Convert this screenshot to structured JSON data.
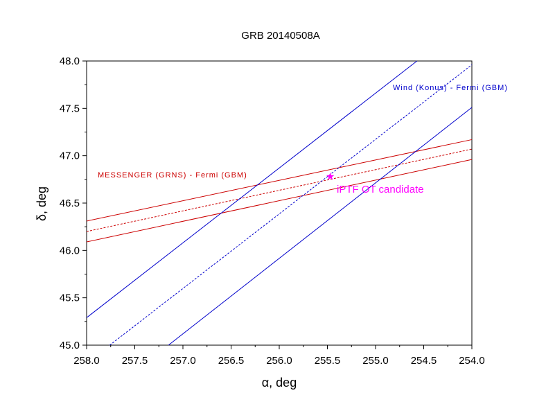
{
  "chart_data": {
    "type": "line",
    "title": "GRB 20140508A",
    "xlabel": "α, deg",
    "ylabel": "δ, deg",
    "xlim": [
      258.0,
      254.0
    ],
    "ylim": [
      45.0,
      48.0
    ],
    "x_reversed": true,
    "grid": false,
    "xticks": [
      "258.0",
      "257.5",
      "257.0",
      "256.5",
      "256.0",
      "255.5",
      "255.0",
      "254.5",
      "254.0"
    ],
    "yticks": [
      "45.0",
      "45.5",
      "46.0",
      "46.5",
      "47.0",
      "47.5",
      "48.0"
    ],
    "series": [
      {
        "group": "messenger",
        "style": "solid",
        "color": "#cc0000",
        "x": [
          258.0,
          254.0
        ],
        "y": [
          46.31,
          47.17
        ]
      },
      {
        "group": "messenger",
        "style": "dotted",
        "color": "#cc0000",
        "x": [
          258.0,
          254.0
        ],
        "y": [
          46.2,
          47.07
        ]
      },
      {
        "group": "messenger",
        "style": "solid",
        "color": "#cc0000",
        "x": [
          258.0,
          254.0
        ],
        "y": [
          46.09,
          46.96
        ]
      },
      {
        "group": "wind",
        "style": "solid",
        "color": "#0000cc",
        "x": [
          258.0,
          254.57
        ],
        "y": [
          45.29,
          48.0
        ]
      },
      {
        "group": "wind",
        "style": "dotted",
        "color": "#0000cc",
        "x": [
          257.76,
          254.0
        ],
        "y": [
          45.0,
          47.96
        ]
      },
      {
        "group": "wind",
        "style": "solid",
        "color": "#0000cc",
        "x": [
          257.15,
          254.0
        ],
        "y": [
          45.0,
          47.51
        ]
      }
    ],
    "point": {
      "x": 255.47,
      "y": 46.78,
      "color": "#ff00ff",
      "marker": "star"
    },
    "annotations": {
      "wind": {
        "text": "Wind (Konus) - Fermi (GBM)",
        "color": "#0000cc"
      },
      "messenger": {
        "text": "MESSENGER (GRNS) - Fermi (GBM)",
        "color": "#cc0000"
      },
      "ot": {
        "text": "iPTF OT candidate",
        "color": "#ff00ff"
      }
    }
  }
}
